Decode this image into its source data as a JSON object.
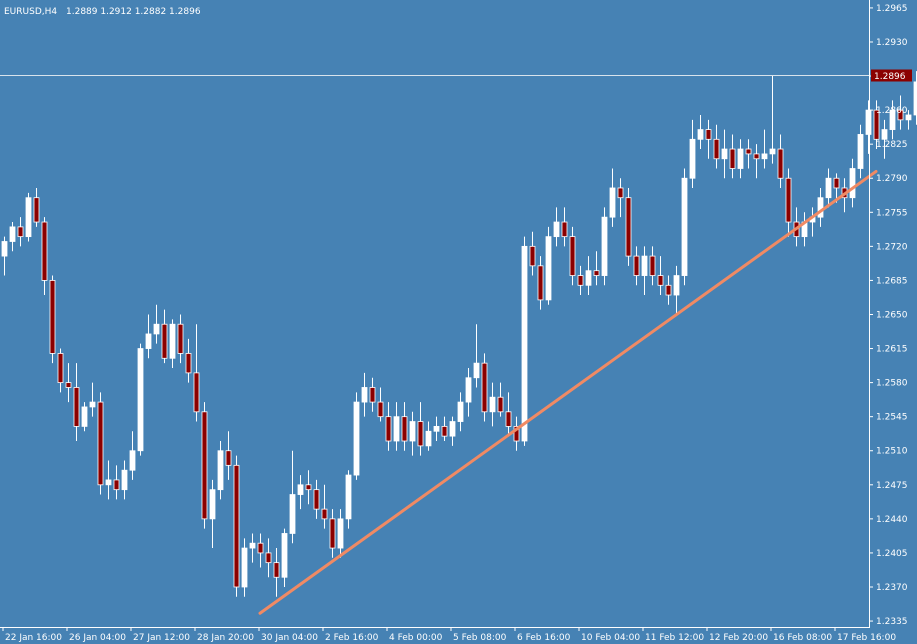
{
  "header": {
    "symbol": "EURUSD,H4",
    "ohlc": "1.2889 1.2912 1.2882 1.2896"
  },
  "colors": {
    "background": "#4682B4",
    "bull": "#FFFFFF",
    "bear": "#8B0000",
    "wick": "#FFFFFF",
    "trendline": "#F08A64",
    "price_line": "#D8E3EC",
    "price_tag_bg": "#8B0000",
    "axis": "#FFFFFF"
  },
  "chart_data": {
    "type": "candlestick",
    "title": "EURUSD,H4",
    "current_price": 1.2896,
    "current_price_label": "1.2896",
    "ylim": [
      1.2333,
      1.2968
    ],
    "y_ticks": [
      "1.2965",
      "1.2930",
      "1.2895",
      "1.2860",
      "1.2825",
      "1.2790",
      "1.2755",
      "1.2720",
      "1.2685",
      "1.2650",
      "1.2615",
      "1.2580",
      "1.2545",
      "1.2510",
      "1.2475",
      "1.2440",
      "1.2405",
      "1.2370",
      "1.2335"
    ],
    "x_ticks": [
      "22 Jan 16:00",
      "26 Jan 04:00",
      "27 Jan 12:00",
      "28 Jan 20:00",
      "30 Jan 04:00",
      "2 Feb 16:00",
      "4 Feb 00:00",
      "5 Feb 08:00",
      "6 Feb 16:00",
      "10 Feb 04:00",
      "11 Feb 12:00",
      "12 Feb 20:00",
      "16 Feb 08:00",
      "17 Feb 16:00"
    ],
    "x_tick_bar_index": [
      0,
      8,
      16,
      24,
      32,
      40,
      48,
      56,
      64,
      72,
      80,
      88,
      96,
      104
    ],
    "trendline": {
      "from": [
        32,
        1.2343
      ],
      "to": [
        109,
        1.2797
      ]
    },
    "candles": [
      [
        1.271,
        1.273,
        1.269,
        1.2725
      ],
      [
        1.2725,
        1.2745,
        1.2715,
        1.274
      ],
      [
        1.274,
        1.275,
        1.272,
        1.273
      ],
      [
        1.273,
        1.2775,
        1.2725,
        1.277
      ],
      [
        1.277,
        1.278,
        1.274,
        1.2745
      ],
      [
        1.2745,
        1.275,
        1.267,
        1.2685
      ],
      [
        1.2685,
        1.269,
        1.26,
        1.261
      ],
      [
        1.261,
        1.2615,
        1.257,
        1.258
      ],
      [
        1.258,
        1.26,
        1.256,
        1.2575
      ],
      [
        1.2575,
        1.26,
        1.252,
        1.2535
      ],
      [
        1.2535,
        1.256,
        1.253,
        1.2555
      ],
      [
        1.2555,
        1.258,
        1.2545,
        1.256
      ],
      [
        1.256,
        1.257,
        1.2465,
        1.2475
      ],
      [
        1.2475,
        1.25,
        1.246,
        1.248
      ],
      [
        1.248,
        1.2495,
        1.246,
        1.247
      ],
      [
        1.247,
        1.25,
        1.246,
        1.249
      ],
      [
        1.249,
        1.253,
        1.248,
        1.251
      ],
      [
        1.251,
        1.262,
        1.2505,
        1.2615
      ],
      [
        1.2615,
        1.265,
        1.2605,
        1.263
      ],
      [
        1.263,
        1.266,
        1.262,
        1.264
      ],
      [
        1.264,
        1.2655,
        1.26,
        1.2605
      ],
      [
        1.2605,
        1.2645,
        1.2595,
        1.264
      ],
      [
        1.264,
        1.265,
        1.26,
        1.261
      ],
      [
        1.261,
        1.2625,
        1.258,
        1.259
      ],
      [
        1.259,
        1.264,
        1.254,
        1.255
      ],
      [
        1.255,
        1.256,
        1.243,
        1.244
      ],
      [
        1.244,
        1.248,
        1.241,
        1.247
      ],
      [
        1.247,
        1.252,
        1.246,
        1.251
      ],
      [
        1.251,
        1.253,
        1.248,
        1.2495
      ],
      [
        1.2495,
        1.2505,
        1.236,
        1.237
      ],
      [
        1.237,
        1.242,
        1.236,
        1.241
      ],
      [
        1.241,
        1.2425,
        1.2395,
        1.2415
      ],
      [
        1.2415,
        1.2425,
        1.239,
        1.2405
      ],
      [
        1.2405,
        1.242,
        1.238,
        1.2395
      ],
      [
        1.2395,
        1.241,
        1.236,
        1.238
      ],
      [
        1.238,
        1.243,
        1.237,
        1.2425
      ],
      [
        1.2425,
        1.251,
        1.2415,
        1.2465
      ],
      [
        1.2465,
        1.2485,
        1.245,
        1.2475
      ],
      [
        1.2475,
        1.249,
        1.2455,
        1.247
      ],
      [
        1.247,
        1.248,
        1.244,
        1.245
      ],
      [
        1.245,
        1.2475,
        1.243,
        1.244
      ],
      [
        1.244,
        1.245,
        1.24,
        1.241
      ],
      [
        1.241,
        1.245,
        1.24,
        1.244
      ],
      [
        1.244,
        1.249,
        1.243,
        1.2485
      ],
      [
        1.2485,
        1.257,
        1.248,
        1.256
      ],
      [
        1.256,
        1.259,
        1.2545,
        1.2575
      ],
      [
        1.2575,
        1.2585,
        1.255,
        1.256
      ],
      [
        1.256,
        1.2575,
        1.254,
        1.2545
      ],
      [
        1.2545,
        1.256,
        1.251,
        1.252
      ],
      [
        1.252,
        1.256,
        1.251,
        1.2545
      ],
      [
        1.2545,
        1.256,
        1.251,
        1.252
      ],
      [
        1.252,
        1.255,
        1.2505,
        1.254
      ],
      [
        1.254,
        1.256,
        1.2505,
        1.2515
      ],
      [
        1.2515,
        1.254,
        1.251,
        1.253
      ],
      [
        1.253,
        1.2545,
        1.252,
        1.2535
      ],
      [
        1.2535,
        1.2545,
        1.252,
        1.2525
      ],
      [
        1.2525,
        1.2545,
        1.2515,
        1.254
      ],
      [
        1.254,
        1.257,
        1.253,
        1.256
      ],
      [
        1.256,
        1.2595,
        1.2545,
        1.2585
      ],
      [
        1.2585,
        1.264,
        1.2575,
        1.26
      ],
      [
        1.26,
        1.261,
        1.254,
        1.255
      ],
      [
        1.255,
        1.258,
        1.2535,
        1.2565
      ],
      [
        1.2565,
        1.258,
        1.2545,
        1.255
      ],
      [
        1.255,
        1.257,
        1.2525,
        1.2535
      ],
      [
        1.2535,
        1.2545,
        1.251,
        1.252
      ],
      [
        1.252,
        1.273,
        1.2515,
        1.272
      ],
      [
        1.272,
        1.2735,
        1.269,
        1.27
      ],
      [
        1.27,
        1.271,
        1.2655,
        1.2665
      ],
      [
        1.2665,
        1.274,
        1.266,
        1.273
      ],
      [
        1.273,
        1.276,
        1.272,
        1.2745
      ],
      [
        1.2745,
        1.276,
        1.272,
        1.273
      ],
      [
        1.273,
        1.274,
        1.268,
        1.269
      ],
      [
        1.269,
        1.27,
        1.267,
        1.268
      ],
      [
        1.268,
        1.271,
        1.267,
        1.2695
      ],
      [
        1.2695,
        1.2715,
        1.268,
        1.269
      ],
      [
        1.269,
        1.276,
        1.268,
        1.275
      ],
      [
        1.275,
        1.28,
        1.274,
        1.278
      ],
      [
        1.278,
        1.279,
        1.275,
        1.277
      ],
      [
        1.277,
        1.278,
        1.27,
        1.271
      ],
      [
        1.271,
        1.272,
        1.268,
        1.269
      ],
      [
        1.269,
        1.272,
        1.267,
        1.271
      ],
      [
        1.271,
        1.272,
        1.268,
        1.269
      ],
      [
        1.269,
        1.271,
        1.267,
        1.268
      ],
      [
        1.268,
        1.269,
        1.266,
        1.267
      ],
      [
        1.267,
        1.27,
        1.265,
        1.269
      ],
      [
        1.269,
        1.28,
        1.268,
        1.279
      ],
      [
        1.279,
        1.285,
        1.278,
        1.283
      ],
      [
        1.283,
        1.2855,
        1.282,
        1.284
      ],
      [
        1.284,
        1.285,
        1.281,
        1.283
      ],
      [
        1.283,
        1.2845,
        1.28,
        1.281
      ],
      [
        1.281,
        1.284,
        1.279,
        1.282
      ],
      [
        1.282,
        1.2835,
        1.279,
        1.28
      ],
      [
        1.28,
        1.283,
        1.279,
        1.282
      ],
      [
        1.282,
        1.283,
        1.28,
        1.2815
      ],
      [
        1.2815,
        1.2825,
        1.279,
        1.281
      ],
      [
        1.281,
        1.284,
        1.28,
        1.2815
      ],
      [
        1.2815,
        1.2895,
        1.2805,
        1.282
      ],
      [
        1.282,
        1.2835,
        1.278,
        1.279
      ],
      [
        1.279,
        1.28,
        1.273,
        1.2745
      ],
      [
        1.2745,
        1.276,
        1.272,
        1.273
      ],
      [
        1.273,
        1.2755,
        1.272,
        1.2745
      ],
      [
        1.2745,
        1.276,
        1.273,
        1.275
      ],
      [
        1.275,
        1.278,
        1.274,
        1.277
      ],
      [
        1.277,
        1.28,
        1.276,
        1.279
      ],
      [
        1.279,
        1.2795,
        1.2765,
        1.278
      ],
      [
        1.278,
        1.279,
        1.2755,
        1.277
      ],
      [
        1.277,
        1.281,
        1.276,
        1.28
      ],
      [
        1.28,
        1.2845,
        1.279,
        1.2835
      ],
      [
        1.2835,
        1.287,
        1.2815,
        1.286
      ],
      [
        1.286,
        1.287,
        1.282,
        1.283
      ],
      [
        1.283,
        1.285,
        1.281,
        1.284
      ],
      [
        1.284,
        1.287,
        1.283,
        1.286
      ],
      [
        1.286,
        1.2875,
        1.284,
        1.285
      ],
      [
        1.285,
        1.286,
        1.284,
        1.2855
      ],
      [
        1.2855,
        1.29,
        1.2845,
        1.2889
      ],
      [
        1.2889,
        1.2912,
        1.2882,
        1.2896
      ]
    ]
  }
}
